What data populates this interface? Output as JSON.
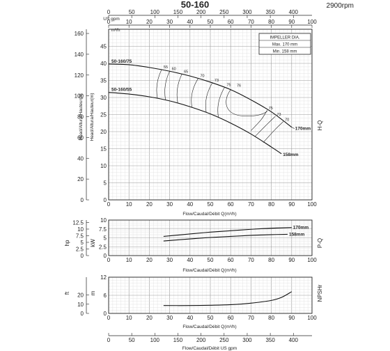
{
  "chart_data": {
    "title": "50-160",
    "speed": "2900rpm",
    "legend": {
      "title": "IMPELLER DIA.",
      "rows": [
        "Max.   170  mm",
        "Min.   158  mm"
      ]
    },
    "flow_axis_top": {
      "label_gpm": "US gpm",
      "label_m3h": "m³/h",
      "ticks_gpm": [
        0,
        50,
        100,
        150,
        200,
        250,
        300,
        350,
        400
      ],
      "ticks_m3h": [
        0,
        10,
        20,
        30,
        40,
        50,
        60,
        70,
        80,
        90,
        100
      ]
    },
    "flow_axis_bottom": {
      "label": "Flow/Caudal/Débit  US gpm",
      "ticks": [
        0,
        50,
        100,
        150,
        200,
        250,
        300,
        350,
        400
      ]
    },
    "xlabel": "Flow/Caudal/Débit Q(m³/h)",
    "xticks": [
      0,
      10,
      20,
      30,
      40,
      50,
      60,
      70,
      80,
      90,
      100
    ],
    "hq": {
      "type": "line",
      "side_label": "H-Q",
      "ylabel_ft": "Head/Altura/Hauteur(ft)",
      "ylabel_m": "Head/Altura/Hauteur(m)",
      "yticks_ft": [
        0,
        20,
        40,
        60,
        80,
        100,
        120,
        140,
        160
      ],
      "yticks_m": [
        0,
        5,
        10,
        15,
        20,
        25,
        30,
        35,
        40,
        45
      ],
      "ylim_m": [
        0,
        50
      ],
      "xlim": [
        0,
        100
      ],
      "series": [
        {
          "name": "170mm",
          "start_label": "50-160/75",
          "x": [
            0,
            10,
            20,
            30,
            40,
            50,
            60,
            70,
            80,
            90
          ],
          "y": [
            39.8,
            39.6,
            38.8,
            37.7,
            36.3,
            34.5,
            32.3,
            29.3,
            25.8,
            21.3
          ]
        },
        {
          "name": "158mm",
          "start_label": "50-160/55",
          "x": [
            0,
            10,
            20,
            30,
            40,
            50,
            60,
            70,
            80,
            85
          ],
          "y": [
            31.5,
            31.0,
            30.2,
            29.0,
            27.3,
            25.2,
            22.5,
            19.3,
            15.5,
            13.5
          ]
        }
      ],
      "efficiency_labels": [
        "55",
        "60",
        "65",
        "70",
        "73",
        "75",
        "76",
        "75",
        "73",
        "70"
      ]
    },
    "power": {
      "type": "line",
      "side_label": "P-Q",
      "ylabel_hp": "hp",
      "ylabel_kw": "kW",
      "yticks_hp": [
        "0",
        "2.5",
        "5",
        "7.5",
        "10",
        "12.5"
      ],
      "yticks_kw": [
        "0",
        "2.5",
        "5",
        "7.5",
        "10"
      ],
      "ylim_kw": [
        0,
        10
      ],
      "series": [
        {
          "name": "170mm",
          "x": [
            27,
            40,
            50,
            60,
            70,
            80,
            90
          ],
          "y": [
            5.4,
            6.1,
            6.6,
            7.0,
            7.4,
            7.7,
            7.9
          ]
        },
        {
          "name": "158mm",
          "x": [
            27,
            40,
            50,
            60,
            70,
            80,
            88
          ],
          "y": [
            4.1,
            4.7,
            5.1,
            5.4,
            5.7,
            5.9,
            6.0
          ]
        }
      ]
    },
    "npsh": {
      "type": "line",
      "side_label": "NPSHr",
      "ylabel_ft": "ft",
      "ylabel_m": "m",
      "yticks_ft": [
        "0",
        "10",
        "20"
      ],
      "yticks_m": [
        "0",
        "6",
        "12"
      ],
      "ylim_m": [
        0,
        12
      ],
      "series": [
        {
          "name": "NPSHr",
          "x": [
            27,
            40,
            50,
            60,
            70,
            80,
            85,
            90
          ],
          "y": [
            2.6,
            2.6,
            2.7,
            2.9,
            3.4,
            4.3,
            5.3,
            7.2
          ]
        }
      ]
    }
  }
}
